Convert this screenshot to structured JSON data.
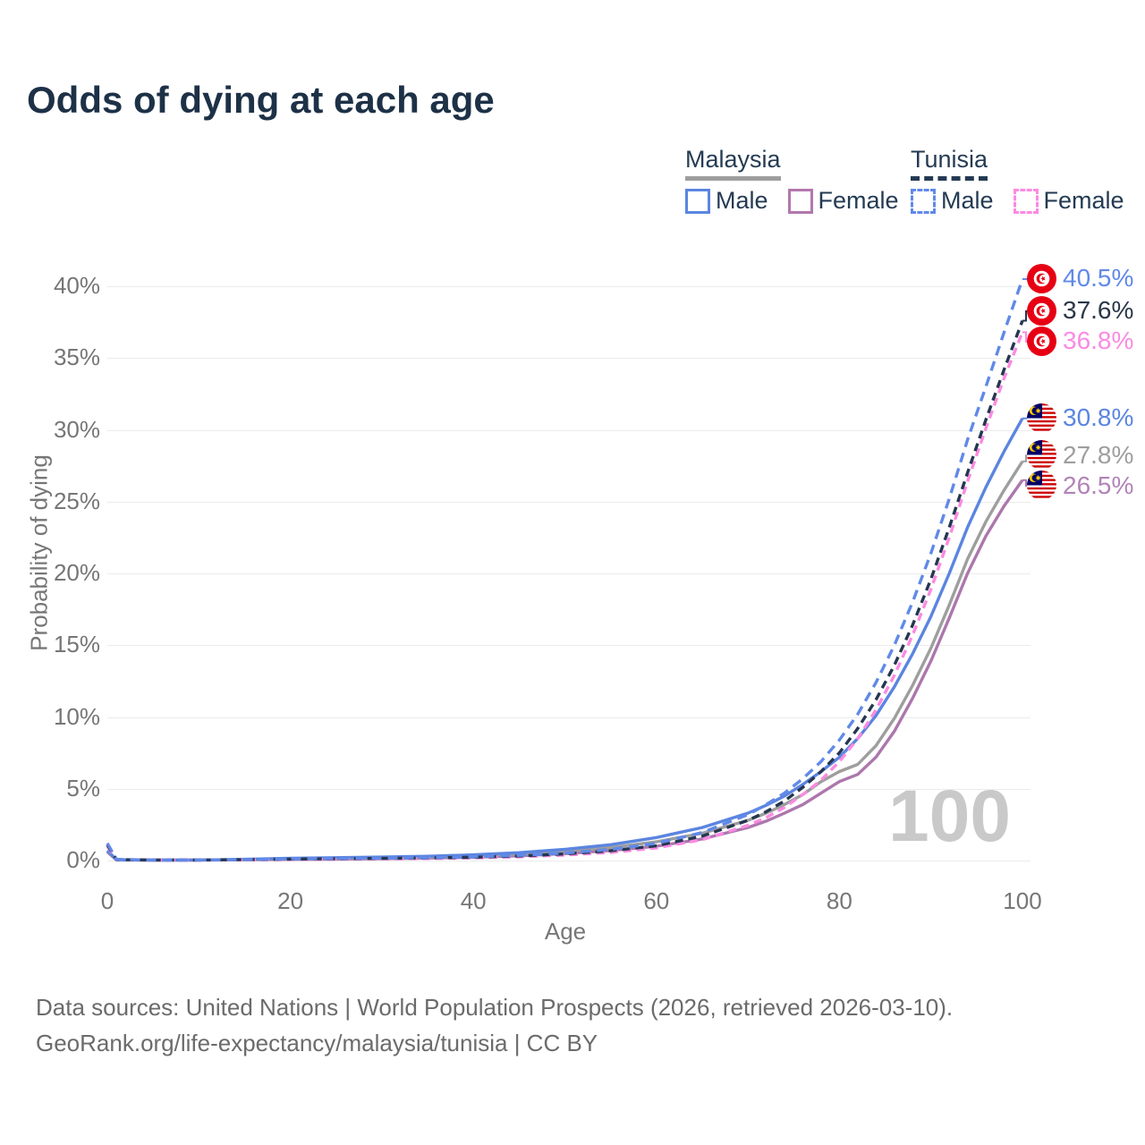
{
  "title": "Odds of dying at each age",
  "watermark_age": "100",
  "legend": {
    "groups": [
      {
        "label": "Malaysia",
        "underline_style": "solid",
        "underline_color": "#9e9e9e",
        "items": [
          {
            "label": "Male",
            "color": "#5b85e0",
            "style": "solid"
          },
          {
            "label": "Female",
            "color": "#b277ae",
            "style": "solid"
          }
        ]
      },
      {
        "label": "Tunisia",
        "underline_style": "dashed",
        "underline_color": "#243b53",
        "items": [
          {
            "label": "Male",
            "color": "#6189e8",
            "style": "dashed"
          },
          {
            "label": "Female",
            "color": "#fb8ae2",
            "style": "dashed"
          }
        ]
      }
    ]
  },
  "footer": {
    "line1": "Data sources: United Nations | World Population Prospects (2026, retrieved 2026-03-10).",
    "line2": "GeoRank.org/life-expectancy/malaysia/tunisia | CC BY"
  },
  "chart_data": {
    "type": "line",
    "title": "Odds of dying at each age",
    "xlabel": "Age",
    "ylabel": "Probability of dying",
    "xlim": [
      0,
      100
    ],
    "ylim": [
      0,
      40
    ],
    "x_ticks": [
      0,
      20,
      40,
      60,
      80,
      100
    ],
    "y_ticks": [
      {
        "value": 0,
        "label": "0%"
      },
      {
        "value": 5,
        "label": "5%"
      },
      {
        "value": 10,
        "label": "10%"
      },
      {
        "value": 15,
        "label": "15%"
      },
      {
        "value": 20,
        "label": "20%"
      },
      {
        "value": 25,
        "label": "25%"
      },
      {
        "value": 30,
        "label": "30%"
      },
      {
        "value": 35,
        "label": "35%"
      },
      {
        "value": 40,
        "label": "40%"
      }
    ],
    "grid": true,
    "legend_position": "top-right",
    "series": [
      {
        "name": "Malaysia female",
        "country": "Malaysia",
        "sex": "female",
        "color": "#ac77ad",
        "label_color": "#b283b8",
        "dash": null,
        "end_label": "26.5%",
        "end_value": 26.5,
        "flag": "malaysia",
        "points": [
          [
            0,
            0.6
          ],
          [
            1,
            0.04
          ],
          [
            5,
            0.03
          ],
          [
            10,
            0.03
          ],
          [
            15,
            0.05
          ],
          [
            20,
            0.08
          ],
          [
            25,
            0.1
          ],
          [
            30,
            0.13
          ],
          [
            35,
            0.17
          ],
          [
            40,
            0.23
          ],
          [
            45,
            0.33
          ],
          [
            50,
            0.48
          ],
          [
            55,
            0.7
          ],
          [
            60,
            1.0
          ],
          [
            65,
            1.5
          ],
          [
            70,
            2.3
          ],
          [
            72,
            2.75
          ],
          [
            74,
            3.3
          ],
          [
            76,
            3.9
          ],
          [
            78,
            4.7
          ],
          [
            80,
            5.5
          ],
          [
            82,
            6.0
          ],
          [
            84,
            7.2
          ],
          [
            86,
            9.0
          ],
          [
            88,
            11.3
          ],
          [
            90,
            13.9
          ],
          [
            92,
            16.9
          ],
          [
            94,
            20.0
          ],
          [
            96,
            22.6
          ],
          [
            98,
            24.7
          ],
          [
            100,
            26.5
          ]
        ]
      },
      {
        "name": "Malaysia both sexes",
        "country": "Malaysia",
        "sex": "all",
        "color": "#9e9e9e",
        "label_color": "#9e9e9e",
        "dash": null,
        "end_label": "27.8%",
        "end_value": 27.8,
        "flag": "malaysia",
        "points": [
          [
            0,
            0.65
          ],
          [
            1,
            0.05
          ],
          [
            5,
            0.03
          ],
          [
            10,
            0.04
          ],
          [
            15,
            0.07
          ],
          [
            20,
            0.12
          ],
          [
            25,
            0.16
          ],
          [
            30,
            0.19
          ],
          [
            35,
            0.24
          ],
          [
            40,
            0.32
          ],
          [
            45,
            0.44
          ],
          [
            50,
            0.63
          ],
          [
            55,
            0.9
          ],
          [
            60,
            1.3
          ],
          [
            65,
            1.9
          ],
          [
            70,
            2.8
          ],
          [
            72,
            3.3
          ],
          [
            74,
            3.9
          ],
          [
            76,
            4.6
          ],
          [
            78,
            5.5
          ],
          [
            80,
            6.2
          ],
          [
            82,
            6.7
          ],
          [
            84,
            8.0
          ],
          [
            86,
            9.9
          ],
          [
            88,
            12.2
          ],
          [
            90,
            14.8
          ],
          [
            92,
            17.8
          ],
          [
            94,
            21.0
          ],
          [
            96,
            23.6
          ],
          [
            98,
            25.8
          ],
          [
            100,
            27.8
          ]
        ]
      },
      {
        "name": "Malaysia male",
        "country": "Malaysia",
        "sex": "male",
        "color": "#5b85e0",
        "label_color": "#5b85e0",
        "dash": null,
        "end_label": "30.8%",
        "end_value": 30.8,
        "flag": "malaysia",
        "points": [
          [
            0,
            0.7
          ],
          [
            1,
            0.05
          ],
          [
            5,
            0.03
          ],
          [
            10,
            0.04
          ],
          [
            15,
            0.09
          ],
          [
            20,
            0.16
          ],
          [
            25,
            0.2
          ],
          [
            30,
            0.24
          ],
          [
            35,
            0.3
          ],
          [
            40,
            0.4
          ],
          [
            45,
            0.55
          ],
          [
            50,
            0.78
          ],
          [
            55,
            1.1
          ],
          [
            60,
            1.6
          ],
          [
            65,
            2.3
          ],
          [
            70,
            3.3
          ],
          [
            72,
            3.85
          ],
          [
            74,
            4.5
          ],
          [
            76,
            5.3
          ],
          [
            78,
            6.2
          ],
          [
            80,
            7.2
          ],
          [
            82,
            8.5
          ],
          [
            84,
            10.1
          ],
          [
            86,
            12.1
          ],
          [
            88,
            14.4
          ],
          [
            90,
            17.0
          ],
          [
            92,
            20.0
          ],
          [
            94,
            23.2
          ],
          [
            96,
            26.0
          ],
          [
            98,
            28.5
          ],
          [
            100,
            30.8
          ]
        ]
      },
      {
        "name": "Tunisia female",
        "country": "Tunisia",
        "sex": "female",
        "color": "#fb8ae2",
        "label_color": "#fb8ae2",
        "dash": "9 6",
        "end_label": "36.8%",
        "end_value": 36.8,
        "flag": "tunisia",
        "points": [
          [
            0,
            1.0
          ],
          [
            1,
            0.06
          ],
          [
            5,
            0.03
          ],
          [
            10,
            0.03
          ],
          [
            15,
            0.05
          ],
          [
            20,
            0.07
          ],
          [
            25,
            0.09
          ],
          [
            30,
            0.11
          ],
          [
            35,
            0.14
          ],
          [
            40,
            0.18
          ],
          [
            45,
            0.26
          ],
          [
            50,
            0.38
          ],
          [
            55,
            0.57
          ],
          [
            60,
            0.88
          ],
          [
            65,
            1.45
          ],
          [
            70,
            2.45
          ],
          [
            72,
            3.0
          ],
          [
            74,
            3.7
          ],
          [
            76,
            4.6
          ],
          [
            78,
            5.6
          ],
          [
            80,
            6.9
          ],
          [
            82,
            8.5
          ],
          [
            84,
            10.5
          ],
          [
            86,
            12.9
          ],
          [
            88,
            15.7
          ],
          [
            90,
            18.9
          ],
          [
            92,
            22.5
          ],
          [
            94,
            26.4
          ],
          [
            96,
            30.1
          ],
          [
            98,
            33.6
          ],
          [
            100,
            36.8
          ]
        ]
      },
      {
        "name": "Tunisia both sexes",
        "country": "Tunisia",
        "sex": "all",
        "color": "#253750",
        "label_color": "#2b3648",
        "dash": "9 6",
        "end_label": "37.6%",
        "end_value": 37.6,
        "flag": "tunisia",
        "points": [
          [
            0,
            1.1
          ],
          [
            1,
            0.07
          ],
          [
            5,
            0.04
          ],
          [
            10,
            0.04
          ],
          [
            15,
            0.06
          ],
          [
            20,
            0.1
          ],
          [
            25,
            0.13
          ],
          [
            30,
            0.15
          ],
          [
            35,
            0.18
          ],
          [
            40,
            0.23
          ],
          [
            45,
            0.32
          ],
          [
            50,
            0.46
          ],
          [
            55,
            0.68
          ],
          [
            60,
            1.03
          ],
          [
            65,
            1.7
          ],
          [
            70,
            2.8
          ],
          [
            72,
            3.4
          ],
          [
            74,
            4.15
          ],
          [
            76,
            5.1
          ],
          [
            78,
            6.2
          ],
          [
            80,
            7.5
          ],
          [
            82,
            9.2
          ],
          [
            84,
            11.2
          ],
          [
            86,
            13.6
          ],
          [
            88,
            16.4
          ],
          [
            90,
            19.6
          ],
          [
            92,
            23.2
          ],
          [
            94,
            27.0
          ],
          [
            96,
            30.7
          ],
          [
            98,
            34.2
          ],
          [
            100,
            37.6
          ]
        ]
      },
      {
        "name": "Tunisia male",
        "country": "Tunisia",
        "sex": "male",
        "color": "#6189e8",
        "label_color": "#6189e8",
        "dash": "11 7",
        "end_label": "40.5%",
        "end_value": 40.5,
        "flag": "tunisia",
        "points": [
          [
            0,
            1.2
          ],
          [
            1,
            0.08
          ],
          [
            5,
            0.04
          ],
          [
            10,
            0.04
          ],
          [
            15,
            0.07
          ],
          [
            20,
            0.12
          ],
          [
            25,
            0.15
          ],
          [
            30,
            0.17
          ],
          [
            35,
            0.2
          ],
          [
            40,
            0.26
          ],
          [
            45,
            0.36
          ],
          [
            50,
            0.52
          ],
          [
            55,
            0.78
          ],
          [
            60,
            1.2
          ],
          [
            65,
            1.95
          ],
          [
            70,
            3.2
          ],
          [
            72,
            3.9
          ],
          [
            74,
            4.7
          ],
          [
            76,
            5.7
          ],
          [
            78,
            6.9
          ],
          [
            80,
            8.4
          ],
          [
            82,
            10.2
          ],
          [
            84,
            12.4
          ],
          [
            86,
            15.0
          ],
          [
            88,
            18.0
          ],
          [
            90,
            21.4
          ],
          [
            92,
            25.2
          ],
          [
            94,
            29.3
          ],
          [
            96,
            33.0
          ],
          [
            98,
            36.8
          ],
          [
            100,
            40.5
          ]
        ]
      }
    ]
  }
}
